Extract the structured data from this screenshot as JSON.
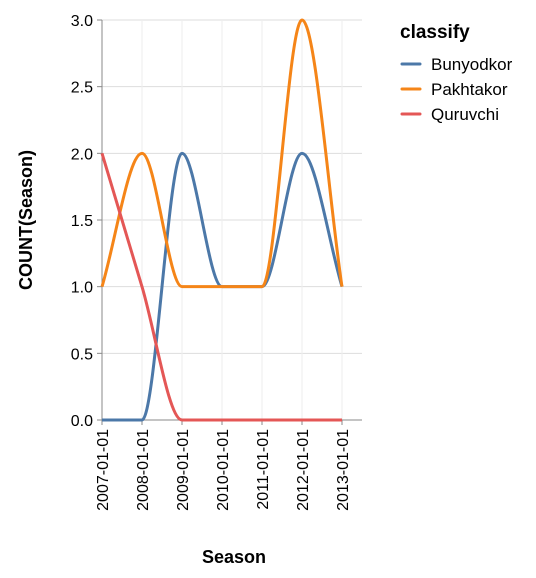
{
  "chart_data": {
    "type": "line",
    "interpolation": "smooth",
    "xlabel": "Season",
    "ylabel": "COUNT(Season)",
    "x": [
      "2007-01-01",
      "2008-01-01",
      "2009-01-01",
      "2010-01-01",
      "2011-01-01",
      "2012-01-01",
      "2013-01-01"
    ],
    "ylim": [
      0,
      3
    ],
    "yticks": [
      "0.0",
      "0.5",
      "1.0",
      "1.5",
      "2.0",
      "2.5",
      "3.0"
    ],
    "grid": true,
    "legend": {
      "title": "classify",
      "position": "top-right"
    },
    "series": [
      {
        "name": "Bunyodkor",
        "color": "#4c78a8",
        "x": [
          "2007-01-01",
          "2008-01-01",
          "2009-01-01",
          "2010-01-01",
          "2011-01-01",
          "2012-01-01",
          "2013-01-01"
        ],
        "values": [
          0,
          0,
          2,
          1,
          1,
          2,
          1
        ]
      },
      {
        "name": "Pakhtakor",
        "color": "#f58518",
        "x": [
          "2007-01-01",
          "2008-01-01",
          "2009-01-01",
          "2010-01-01",
          "2011-01-01",
          "2012-01-01",
          "2013-01-01"
        ],
        "values": [
          1,
          2,
          1,
          1,
          1,
          3,
          1
        ]
      },
      {
        "name": "Quruvchi",
        "color": "#e45756",
        "x": [
          "2007-01-01",
          "2008-01-01",
          "2009-01-01",
          "2010-01-01",
          "2011-01-01",
          "2012-01-01",
          "2013-01-01"
        ],
        "values": [
          2,
          1,
          0,
          0,
          0,
          0,
          0
        ]
      }
    ]
  }
}
